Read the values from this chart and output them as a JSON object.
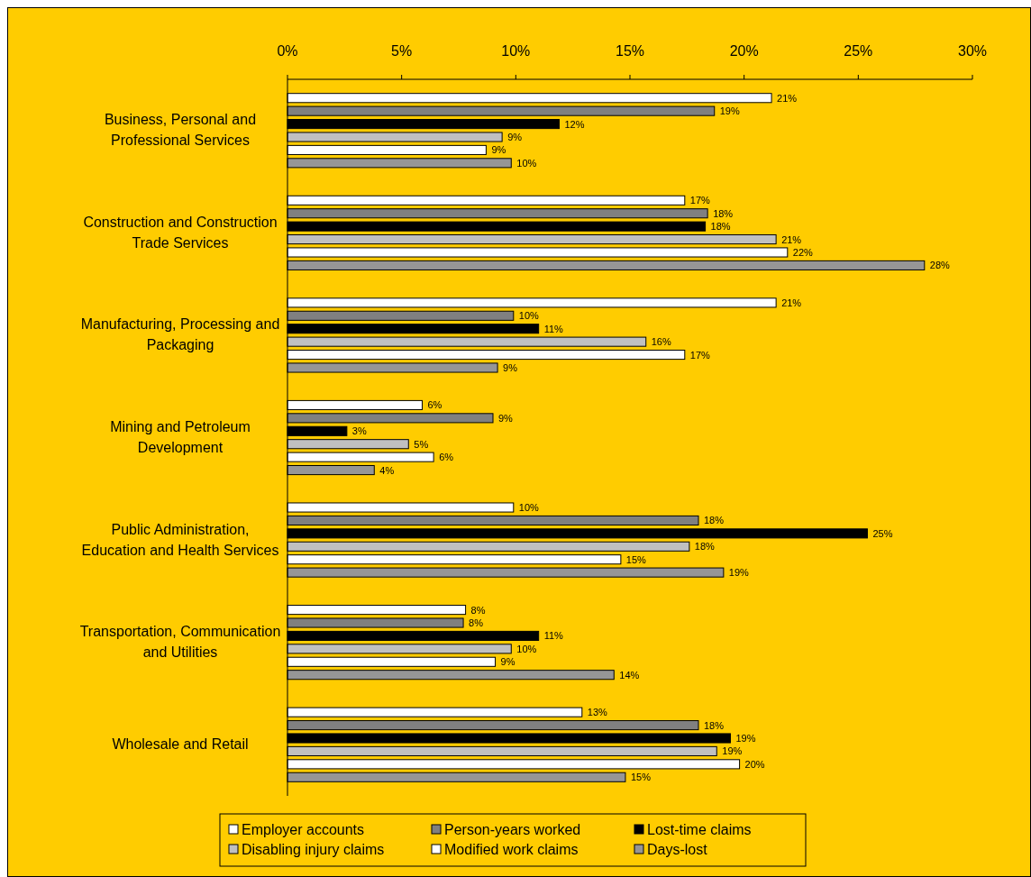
{
  "chart_data": {
    "type": "bar",
    "orientation": "horizontal",
    "categories": [
      "Business, Personal and Professional Services",
      "Construction and Construction Trade Services",
      "Manufacturing, Processing and Packaging",
      "Mining and Petroleum Development",
      "Public Administration, Education and Health Services",
      "Transportation, Communication and Utilities",
      "Wholesale and Retail"
    ],
    "series": [
      {
        "name": "Employer accounts",
        "color": "#ffffff",
        "values": [
          21.2,
          17.4,
          21.4,
          5.9,
          9.9,
          7.8,
          12.9
        ],
        "value_labels": [
          "21%",
          "17%",
          "21%",
          "6%",
          "10%",
          "8%",
          "13%"
        ]
      },
      {
        "name": "Person-years worked",
        "color": "#808080",
        "values": [
          18.7,
          18.4,
          9.9,
          9.0,
          18.0,
          7.7,
          18.0
        ],
        "value_labels": [
          "19%",
          "18%",
          "10%",
          "9%",
          "18%",
          "8%",
          "18%"
        ]
      },
      {
        "name": "Lost-time claims",
        "color": "#000000",
        "values": [
          11.9,
          18.3,
          11.0,
          2.6,
          25.4,
          11.0,
          19.4
        ],
        "value_labels": [
          "12%",
          "18%",
          "11%",
          "3%",
          "25%",
          "11%",
          "19%"
        ]
      },
      {
        "name": "Disabling injury claims",
        "color": "#c0c0c0",
        "values": [
          9.4,
          21.4,
          15.7,
          5.3,
          17.6,
          9.8,
          18.8
        ],
        "value_labels": [
          "9%",
          "21%",
          "16%",
          "5%",
          "18%",
          "10%",
          "19%"
        ]
      },
      {
        "name": "Modified work claims",
        "color": "#ffffff",
        "values": [
          8.7,
          21.9,
          17.4,
          6.4,
          14.6,
          9.1,
          19.8
        ],
        "value_labels": [
          "9%",
          "22%",
          "17%",
          "6%",
          "15%",
          "9%",
          "20%"
        ]
      },
      {
        "name": "Days-lost",
        "color": "#969696",
        "values": [
          9.8,
          27.9,
          9.2,
          3.8,
          19.1,
          14.3,
          14.8
        ],
        "value_labels": [
          "10%",
          "28%",
          "9%",
          "4%",
          "19%",
          "14%",
          "15%"
        ]
      }
    ],
    "xlim": [
      0,
      30
    ],
    "xticks": [
      {
        "value": 0,
        "label": "0%"
      },
      {
        "value": 5,
        "label": "5%"
      },
      {
        "value": 10,
        "label": "10%"
      },
      {
        "value": 15,
        "label": "15%"
      },
      {
        "value": 20,
        "label": "20%"
      },
      {
        "value": 25,
        "label": "25%"
      },
      {
        "value": 30,
        "label": "30%"
      }
    ],
    "grid": false,
    "legend": "bottom"
  }
}
